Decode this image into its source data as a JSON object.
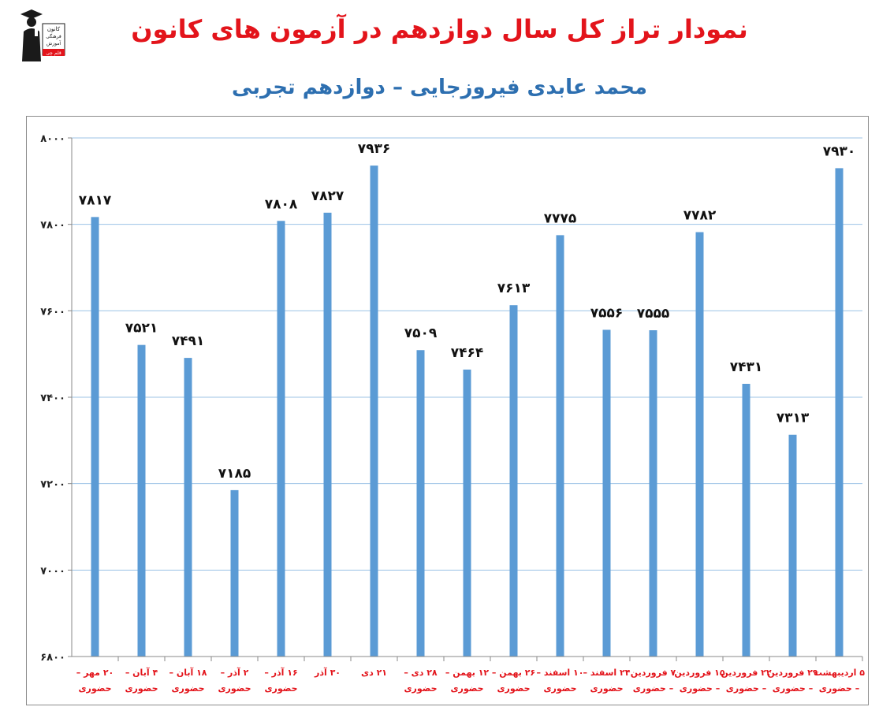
{
  "page": {
    "title": "نمودار تراز کل سال دوازدهم در آزمون های کانون",
    "subtitle": "محمد عابدی فیروزجایی – دوازدهم تجربی"
  },
  "logo": {
    "name": "kanoon-logo",
    "lines": [
      "کانون",
      "فرهنگی",
      "آموزش",
      "قلم چی"
    ]
  },
  "colors": {
    "bar": "#5b9bd5",
    "title": "#e3141b",
    "subtitle": "#2d6fb0",
    "grid": "#9dc3e6",
    "xlabel": "#e3141b"
  },
  "chart_data": {
    "type": "bar",
    "ylim": [
      6800,
      8000
    ],
    "yticks": [
      6800,
      7000,
      7200,
      7400,
      7600,
      7800,
      8000
    ],
    "ytick_labels": [
      "۶۸۰۰",
      "۷۰۰۰",
      "۷۲۰۰",
      "۷۴۰۰",
      "۷۶۰۰",
      "۷۸۰۰",
      "۸۰۰۰"
    ],
    "grid": true,
    "categories": [
      [
        "۲۰ مهر –",
        "حضوری"
      ],
      [
        "۴ آبان –",
        "حضوری"
      ],
      [
        "۱۸ آبان –",
        "حضوری"
      ],
      [
        "۲ آذر –",
        "حضوری"
      ],
      [
        "۱۶ آذر –",
        "حضوری"
      ],
      [
        "۳۰ آذر"
      ],
      [
        "۲۱ دی"
      ],
      [
        "۲۸ دی –",
        "حضوری"
      ],
      [
        "۱۲ بهمن –",
        "حضوری"
      ],
      [
        "۲۶ بهمن –",
        "حضوری"
      ],
      [
        "۱۰ اسفند –",
        "حضوری"
      ],
      [
        "۲۴ اسفند –",
        "حضوری"
      ],
      [
        "۷ فروردین",
        "– حضوری"
      ],
      [
        "۱۵ فروردین",
        "– حضوری"
      ],
      [
        "۲۲ فروردین",
        "– حضوری"
      ],
      [
        "۲۹ فروردین",
        "– حضوری"
      ],
      [
        "۵ اردیبهشت",
        "– حضوری"
      ]
    ],
    "values": [
      7817,
      7521,
      7491,
      7185,
      7808,
      7827,
      7936,
      7509,
      7464,
      7613,
      7775,
      7556,
      7555,
      7782,
      7431,
      7313,
      7930
    ],
    "value_labels": [
      "۷۸۱۷",
      "۷۵۲۱",
      "۷۴۹۱",
      "۷۱۸۵",
      "۷۸۰۸",
      "۷۸۲۷",
      "۷۹۳۶",
      "۷۵۰۹",
      "۷۴۶۴",
      "۷۶۱۳",
      "۷۷۷۵",
      "۷۵۵۶",
      "۷۵۵۵",
      "۷۷۸۲",
      "۷۴۳۱",
      "۷۳۱۳",
      "۷۹۳۰"
    ]
  }
}
